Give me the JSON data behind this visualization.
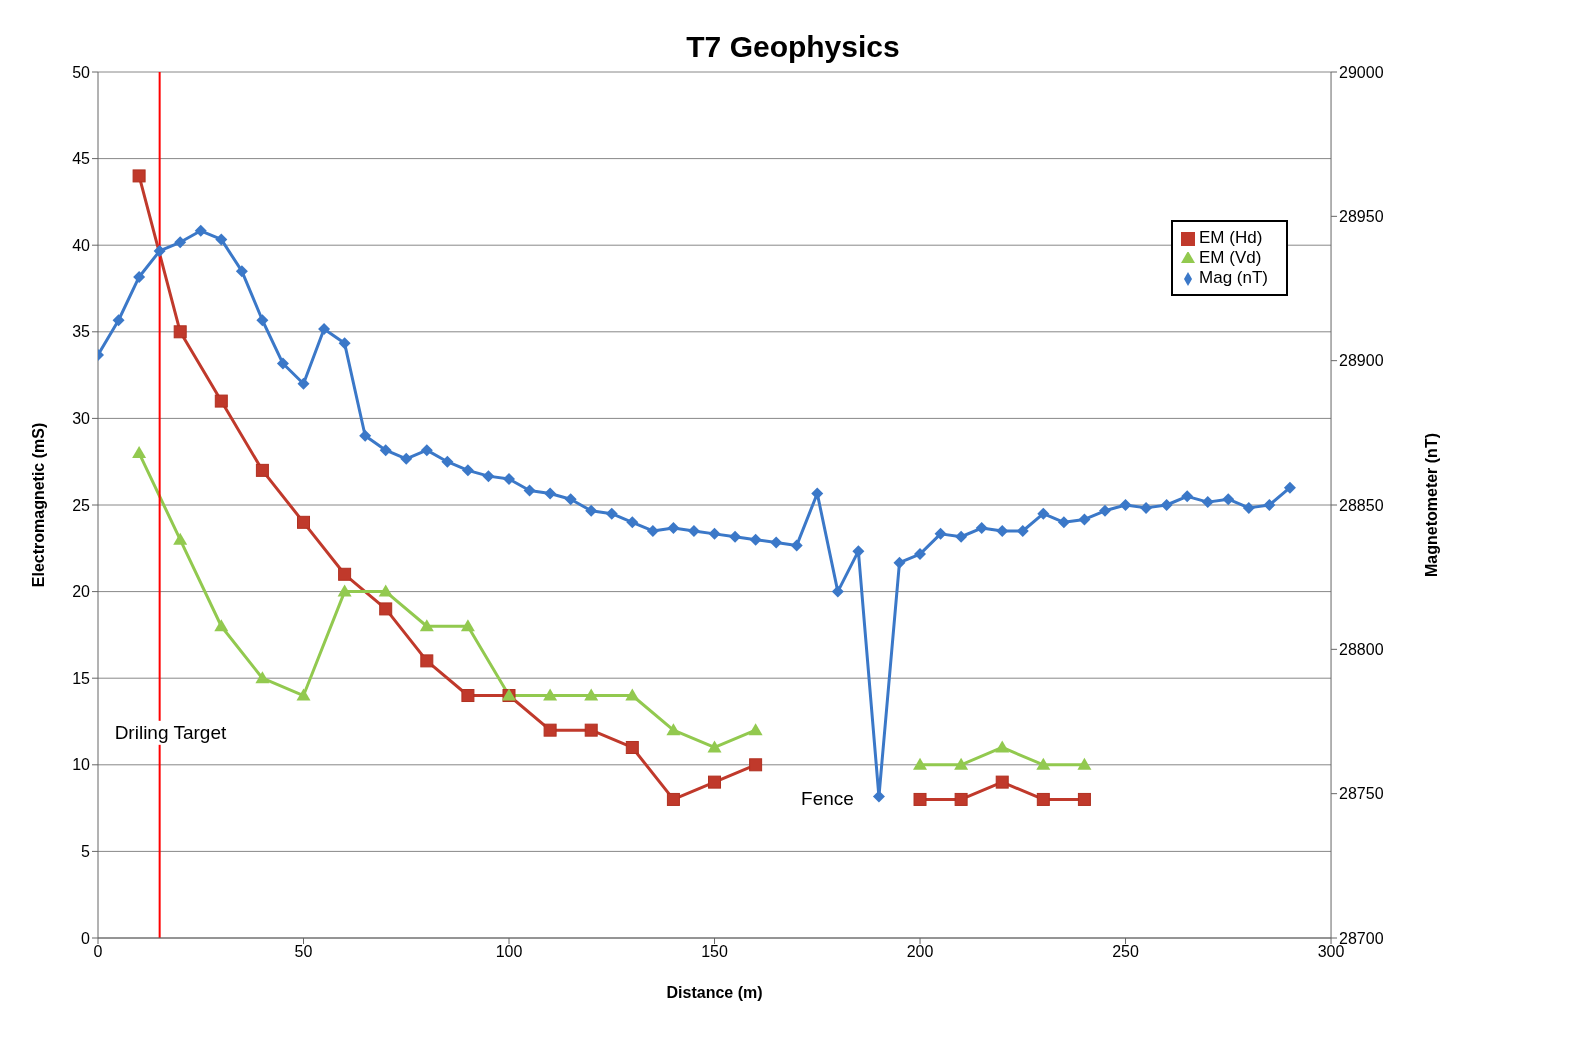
{
  "chart_data": {
    "type": "line",
    "title": "T7 Geophysics",
    "xlabel": "Distance (m)",
    "ylabel": "Electromagnetic (mS)",
    "y2label": "Magnetometer (nT)",
    "series": [
      {
        "name": "EM (Hd)",
        "color": "#c0392b",
        "marker": "square",
        "x": [
          10,
          20,
          30,
          40,
          50,
          60,
          70,
          80,
          90,
          100,
          110,
          120,
          130,
          140,
          150,
          160,
          170,
          180,
          190,
          200,
          210,
          220,
          230,
          240
        ],
        "values": [
          44,
          35,
          31,
          27,
          24,
          21,
          19,
          16,
          14,
          14,
          12,
          12,
          11,
          8,
          9,
          10,
          null,
          null,
          null,
          8,
          8,
          9,
          8,
          8
        ]
      },
      {
        "name": "EM (Vd)",
        "color": "#92c94f",
        "marker": "triangle",
        "x": [
          10,
          20,
          30,
          40,
          50,
          60,
          70,
          80,
          90,
          100,
          110,
          120,
          130,
          140,
          150,
          160,
          170,
          180,
          190,
          200,
          210,
          220,
          230,
          240
        ],
        "values": [
          28,
          23,
          18,
          15,
          14,
          20,
          20,
          18,
          18,
          14,
          14,
          14,
          14,
          12,
          11,
          12,
          null,
          null,
          null,
          10,
          10,
          11,
          10,
          10
        ]
      },
      {
        "name": "Mag (nT)",
        "color": "#3b78c8",
        "marker": "diamond",
        "axis": "y2",
        "x": [
          0,
          5,
          10,
          15,
          20,
          25,
          30,
          35,
          40,
          45,
          50,
          55,
          60,
          65,
          70,
          75,
          80,
          85,
          90,
          95,
          100,
          105,
          110,
          115,
          120,
          125,
          130,
          135,
          140,
          145,
          150,
          155,
          160,
          165,
          170,
          175,
          180,
          185,
          190,
          195,
          200,
          205,
          210,
          215,
          220,
          225,
          230,
          235,
          240,
          245,
          250,
          255,
          260,
          265,
          270,
          275,
          280,
          285,
          290
        ],
        "values": [
          28902,
          28914,
          28929,
          28938,
          28941,
          28945,
          28942,
          28931,
          28914,
          28899,
          28892,
          28911,
          28906,
          28874,
          28869,
          28866,
          28869,
          28865,
          28862,
          28860,
          28859,
          28855,
          28854,
          28852,
          28848,
          28847,
          28844,
          28841,
          28842,
          28841,
          28840,
          28839,
          28838,
          28837,
          28836,
          28854,
          28820,
          28834,
          28749,
          28830,
          28833,
          28840,
          28839,
          28842,
          28841,
          28841,
          28847,
          28844,
          28845,
          28848,
          28850,
          28849,
          28850,
          28853,
          28851,
          28852,
          28849,
          28850,
          28856
        ]
      }
    ],
    "xlim": [
      0,
      300
    ],
    "xticks": [
      0,
      50,
      100,
      150,
      200,
      250,
      300
    ],
    "ylim": [
      0,
      50
    ],
    "yticks": [
      0,
      5,
      10,
      15,
      20,
      25,
      30,
      35,
      40,
      45,
      50
    ],
    "y2lim": [
      28700,
      29000
    ],
    "y2ticks": [
      28700,
      28750,
      28800,
      28850,
      28900,
      28950,
      29000
    ],
    "grid": "y",
    "legend": "top right",
    "ref_lines": [
      {
        "axis": "x",
        "value": 15,
        "label": "Driling Target",
        "color": "#ff0000"
      }
    ],
    "annotations": [
      {
        "text": "Fence",
        "x": 190,
        "y": 8
      }
    ]
  }
}
